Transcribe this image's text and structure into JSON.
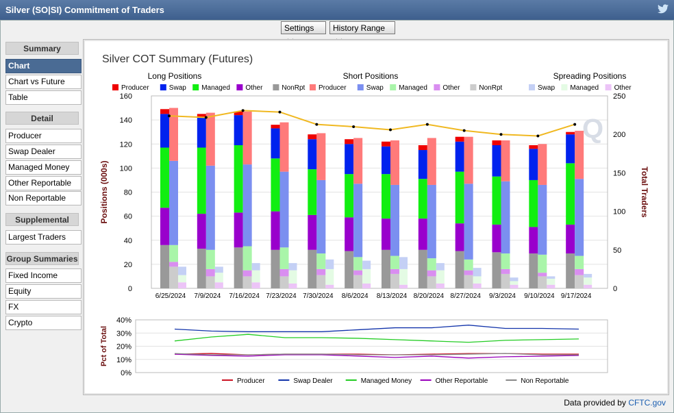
{
  "window": {
    "title": "Silver (SO|SI) Commitment of Traders"
  },
  "toolbar": {
    "settings_label": "Settings",
    "history_label": "History Range"
  },
  "sidebar": {
    "sections": [
      {
        "header": "Summary",
        "items": [
          "Chart",
          "Chart vs Future",
          "Table"
        ]
      },
      {
        "header": "Detail",
        "items": [
          "Producer",
          "Swap Dealer",
          "Managed Money",
          "Other Reportable",
          "Non Reportable"
        ]
      },
      {
        "header": "Supplemental",
        "items": [
          "Largest Traders"
        ]
      },
      {
        "header": "Group Summaries",
        "items": [
          "Fixed Income",
          "Equity",
          "FX",
          "Crypto"
        ]
      }
    ],
    "active_item": "Chart"
  },
  "footer": {
    "text": "Data provided by",
    "link": "CFTC.gov"
  },
  "colors": {
    "long_producer": "#ee0000",
    "long_swap": "#0022ee",
    "long_managed": "#11ee11",
    "long_other": "#9900cc",
    "long_nonrpt": "#999999",
    "short_producer": "#ff7a7a",
    "short_swap": "#7b8ff0",
    "short_managed": "#a9f5a9",
    "short_other": "#d98ef0",
    "short_nonrpt": "#cccccc",
    "spread_swap": "#c4d0f5",
    "spread_managed": "#e4fbe4",
    "spread_other": "#ecc4f7",
    "total_traders_line": "#f0b820",
    "axis_label": "#6b0f0f"
  },
  "chart_data": [
    {
      "type": "bar",
      "title": "Silver COT Summary (Futures)",
      "ylabel": "Positions (000s)",
      "y2label": "Total Traders",
      "ylim": [
        0,
        160
      ],
      "yticks": [
        0,
        20,
        40,
        60,
        80,
        100,
        120,
        140,
        160
      ],
      "y2lim": [
        0,
        250
      ],
      "y2ticks": [
        0,
        50,
        100,
        150,
        200,
        250
      ],
      "grid": true,
      "categories": [
        "6/25/2024",
        "7/9/2024",
        "7/16/2024",
        "7/23/2024",
        "7/30/2024",
        "8/6/2024",
        "8/13/2024",
        "8/20/2024",
        "8/27/2024",
        "9/3/2024",
        "9/10/2024",
        "9/17/2024"
      ],
      "legend_groups": [
        {
          "title": "Long Positions",
          "entries": [
            {
              "name": "Producer",
              "color_key": "long_producer"
            },
            {
              "name": "Swap",
              "color_key": "long_swap"
            },
            {
              "name": "Managed",
              "color_key": "long_managed"
            },
            {
              "name": "Other",
              "color_key": "long_other"
            },
            {
              "name": "NonRpt",
              "color_key": "long_nonrpt"
            }
          ]
        },
        {
          "title": "Short Positions",
          "entries": [
            {
              "name": "Producer",
              "color_key": "short_producer"
            },
            {
              "name": "Swap",
              "color_key": "short_swap"
            },
            {
              "name": "Managed",
              "color_key": "short_managed"
            },
            {
              "name": "Other",
              "color_key": "short_other"
            },
            {
              "name": "NonRpt",
              "color_key": "short_nonrpt"
            }
          ]
        },
        {
          "title": "Spreading Positions",
          "entries": [
            {
              "name": "Swap",
              "color_key": "spread_swap"
            },
            {
              "name": "Managed",
              "color_key": "spread_managed"
            },
            {
              "name": "Other",
              "color_key": "spread_other"
            }
          ]
        }
      ],
      "long": {
        "nonrpt": [
          36,
          33,
          34,
          32,
          32,
          31,
          32,
          32,
          31,
          30,
          29,
          29
        ],
        "other": [
          31,
          29,
          29,
          32,
          29,
          28,
          26,
          26,
          23,
          23,
          22,
          24
        ],
        "managed": [
          50,
          55,
          56,
          44,
          38,
          36,
          37,
          33,
          43,
          40,
          39,
          51
        ],
        "swap": [
          28,
          25,
          25,
          25,
          25,
          25,
          23,
          24,
          25,
          26,
          26,
          24
        ],
        "producer": [
          4,
          3,
          3,
          3,
          4,
          4,
          4,
          4,
          4,
          4,
          3,
          2
        ]
      },
      "short": {
        "nonrpt": [
          18,
          10,
          10,
          10,
          11,
          11,
          12,
          10,
          11,
          12,
          10,
          11
        ],
        "other": [
          4,
          6,
          5,
          6,
          5,
          4,
          4,
          5,
          4,
          4,
          3,
          5
        ],
        "managed": [
          14,
          16,
          20,
          18,
          13,
          11,
          11,
          10,
          9,
          13,
          15,
          11
        ],
        "swap": [
          70,
          70,
          68,
          63,
          61,
          61,
          59,
          61,
          63,
          60,
          58,
          64
        ],
        "producer": [
          44,
          44,
          44,
          41,
          39,
          38,
          37,
          39,
          39,
          34,
          34,
          40
        ]
      },
      "spread": {
        "other": [
          5,
          5,
          5,
          4,
          3,
          4,
          3,
          4,
          4,
          3,
          3,
          3
        ],
        "managed": [
          6,
          8,
          10,
          11,
          13,
          12,
          13,
          11,
          6,
          3,
          5,
          6
        ],
        "swap": [
          7,
          5,
          6,
          6,
          8,
          7,
          10,
          6,
          7,
          3,
          2,
          3
        ]
      },
      "total_traders": [
        224,
        222,
        231,
        229,
        213,
        210,
        206,
        213,
        205,
        200,
        198,
        213
      ]
    },
    {
      "type": "line",
      "ylabel": "Pct of Total",
      "ylim": [
        0,
        40
      ],
      "yticks": [
        "0%",
        "10%",
        "20%",
        "30%",
        "40%"
      ],
      "grid": true,
      "series": [
        {
          "name": "Producer",
          "color": "#cc1122",
          "values": [
            14,
            14.5,
            13.5,
            14,
            14,
            14,
            13.5,
            14,
            14.5,
            14.5,
            14,
            14
          ]
        },
        {
          "name": "Swap Dealer",
          "color": "#1133aa",
          "values": [
            33,
            31.5,
            31,
            31,
            31,
            32.5,
            34,
            34,
            36,
            33.5,
            33.5,
            33
          ]
        },
        {
          "name": "Managed Money",
          "color": "#22cc22",
          "values": [
            24,
            27,
            29,
            26.5,
            26.5,
            26,
            25,
            24,
            23,
            24.5,
            25,
            25.5
          ]
        },
        {
          "name": "Other Reportable",
          "color": "#9900bb",
          "values": [
            14,
            13,
            12.5,
            13.5,
            13.5,
            12.5,
            11.5,
            12.5,
            11,
            12,
            12.5,
            13
          ]
        },
        {
          "name": "Non Reportable",
          "color": "#888888",
          "values": [
            14.5,
            13.5,
            13.5,
            14,
            14,
            13.5,
            13.5,
            13.5,
            14,
            14.5,
            13.5,
            13.5
          ]
        }
      ]
    }
  ]
}
